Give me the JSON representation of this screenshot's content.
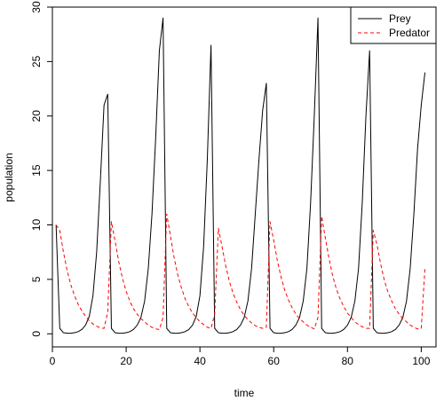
{
  "chart_data": {
    "type": "line",
    "title": "",
    "xlabel": "time",
    "ylabel": "population",
    "xlim": [
      0,
      104
    ],
    "ylim": [
      -1.2,
      30
    ],
    "x_ticks": [
      0,
      20,
      40,
      60,
      80,
      100
    ],
    "y_ticks": [
      0,
      5,
      10,
      15,
      20,
      25,
      30
    ],
    "grid": false,
    "legend_position": "top-right",
    "series": [
      {
        "name": "Prey",
        "color": "#000000",
        "line_style": "solid",
        "x": [
          1,
          2,
          3,
          4,
          5,
          6,
          7,
          8,
          9,
          10,
          11,
          12,
          13,
          14,
          15,
          16,
          17,
          18,
          19,
          20,
          21,
          22,
          23,
          24,
          25,
          26,
          27,
          28,
          29,
          30,
          31,
          32,
          33,
          34,
          35,
          36,
          37,
          38,
          39,
          40,
          41,
          42,
          43,
          44,
          45,
          46,
          47,
          48,
          49,
          50,
          51,
          52,
          53,
          54,
          55,
          56,
          57,
          58,
          59,
          60,
          61,
          62,
          63,
          64,
          65,
          66,
          67,
          68,
          69,
          70,
          71,
          72,
          73,
          74,
          75,
          76,
          77,
          78,
          79,
          80,
          81,
          82,
          83,
          84,
          85,
          86,
          87,
          88,
          89,
          90,
          91,
          92,
          93,
          94,
          95,
          96,
          97,
          98,
          99,
          100,
          101
        ],
        "y": [
          10,
          0.5,
          0.1,
          0.05,
          0.05,
          0.1,
          0.2,
          0.4,
          0.8,
          1.6,
          3.5,
          7.5,
          14,
          21,
          22,
          0.5,
          0.1,
          0.05,
          0.05,
          0.1,
          0.2,
          0.4,
          0.8,
          1.5,
          3,
          6,
          11,
          18,
          26,
          29,
          0.5,
          0.1,
          0.05,
          0.05,
          0.1,
          0.2,
          0.4,
          0.8,
          1.6,
          3.5,
          8,
          16,
          26.5,
          0.5,
          0.1,
          0.05,
          0.05,
          0.1,
          0.2,
          0.4,
          0.8,
          1.5,
          3,
          6,
          11,
          16,
          20.5,
          23,
          0.5,
          0.1,
          0.05,
          0.05,
          0.1,
          0.2,
          0.4,
          0.8,
          1.5,
          3,
          6,
          12,
          20,
          29,
          0.5,
          0.1,
          0.05,
          0.05,
          0.1,
          0.2,
          0.4,
          0.8,
          1.5,
          3,
          6,
          12,
          20,
          26,
          0.5,
          0.1,
          0.05,
          0.05,
          0.1,
          0.2,
          0.4,
          0.8,
          1.5,
          3,
          6,
          11,
          17,
          21,
          24
        ]
      },
      {
        "name": "Predator",
        "color": "#ff0000",
        "line_style": "dashed",
        "x": [
          1,
          2,
          3,
          4,
          5,
          6,
          7,
          8,
          9,
          10,
          11,
          12,
          13,
          14,
          15,
          16,
          17,
          18,
          19,
          20,
          21,
          22,
          23,
          24,
          25,
          26,
          27,
          28,
          29,
          30,
          31,
          32,
          33,
          34,
          35,
          36,
          37,
          38,
          39,
          40,
          41,
          42,
          43,
          44,
          45,
          46,
          47,
          48,
          49,
          50,
          51,
          52,
          53,
          54,
          55,
          56,
          57,
          58,
          59,
          60,
          61,
          62,
          63,
          64,
          65,
          66,
          67,
          68,
          69,
          70,
          71,
          72,
          73,
          74,
          75,
          76,
          77,
          78,
          79,
          80,
          81,
          82,
          83,
          84,
          85,
          86,
          87,
          88,
          89,
          90,
          91,
          92,
          93,
          94,
          95,
          96,
          97,
          98,
          99,
          100,
          101
        ],
        "y": [
          10,
          9.5,
          7.5,
          5.8,
          4.5,
          3.5,
          2.7,
          2.1,
          1.6,
          1.2,
          0.9,
          0.7,
          0.55,
          0.5,
          2,
          10.3,
          8.5,
          6.6,
          5.1,
          3.9,
          3,
          2.3,
          1.8,
          1.4,
          1.1,
          0.8,
          0.6,
          0.45,
          0.4,
          1.5,
          11,
          9,
          7,
          5.4,
          4.2,
          3.2,
          2.5,
          1.9,
          1.5,
          1.1,
          0.85,
          0.6,
          0.5,
          1.8,
          9.7,
          8,
          6.2,
          4.8,
          3.7,
          2.9,
          2.2,
          1.7,
          1.3,
          1,
          0.75,
          0.6,
          0.5,
          0.6,
          10.3,
          8.6,
          6.7,
          5.2,
          4,
          3.1,
          2.4,
          1.8,
          1.4,
          1.1,
          0.8,
          0.6,
          0.45,
          1.5,
          10.8,
          8.8,
          6.9,
          5.3,
          4.1,
          3.2,
          2.5,
          1.9,
          1.5,
          1.1,
          0.85,
          0.65,
          0.5,
          0.5,
          9.5,
          8.2,
          6.4,
          4.9,
          3.8,
          3,
          2.3,
          1.8,
          1.4,
          1.1,
          0.8,
          0.6,
          0.45,
          0.5,
          6
        ]
      }
    ]
  }
}
